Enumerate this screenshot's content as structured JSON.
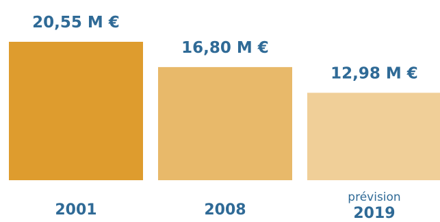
{
  "chart_data": {
    "type": "bar",
    "categories": [
      "2001",
      "2008",
      "2019"
    ],
    "category_notes": [
      "",
      "",
      "prévision"
    ],
    "values": [
      20.55,
      16.8,
      12.98
    ],
    "data_labels": [
      "20,55 M €",
      "16,80 M €",
      "12,98 M €"
    ],
    "colors": [
      "#de9c2e",
      "#e8b96a",
      "#f0cf98"
    ],
    "ylim": [
      0,
      20.55
    ],
    "grid": false,
    "legend": "none"
  }
}
